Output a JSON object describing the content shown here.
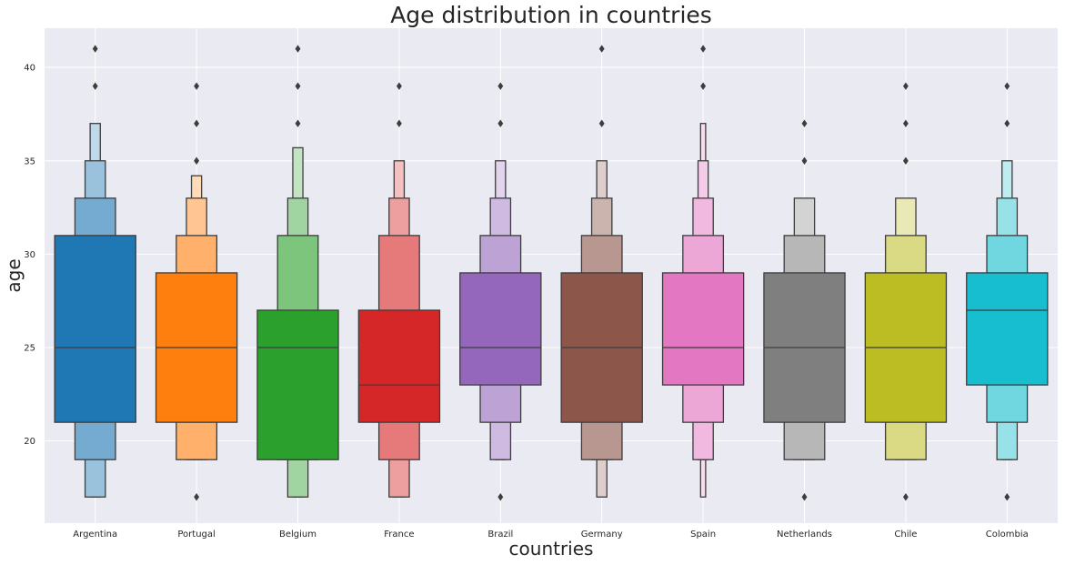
{
  "chart_data": {
    "type": "boxen",
    "title": "Age distribution in countries",
    "xlabel": "countries",
    "ylabel": "age",
    "ylim": [
      15.6,
      42.1
    ],
    "yticks": [
      20,
      25,
      30,
      35,
      40
    ],
    "grid": true,
    "background": "#EAEAF2",
    "categories": [
      "Argentina",
      "Portugal",
      "Belgium",
      "France",
      "Brazil",
      "Germany",
      "Spain",
      "Netherlands",
      "Chile",
      "Colombia"
    ],
    "colors": [
      "#1F77B4",
      "#FF7F0E",
      "#2CA02C",
      "#D62728",
      "#9467BD",
      "#8C564B",
      "#E377C2",
      "#7F7F7F",
      "#BCBD22",
      "#17BECF"
    ],
    "series": [
      {
        "category": "Argentina",
        "median": 25,
        "letter_values": [
          [
            21,
            31
          ],
          [
            19,
            33
          ],
          [
            17,
            35
          ],
          [
            17,
            37
          ]
        ],
        "outliers": [
          39,
          41
        ]
      },
      {
        "category": "Portugal",
        "median": 25,
        "letter_values": [
          [
            21,
            29
          ],
          [
            19,
            31
          ],
          [
            19,
            33
          ],
          [
            19,
            34.2
          ]
        ],
        "outliers": [
          17,
          35,
          37,
          39
        ]
      },
      {
        "category": "Belgium",
        "median": 25,
        "letter_values": [
          [
            19,
            27
          ],
          [
            19,
            31
          ],
          [
            17,
            33
          ],
          [
            17,
            35.7
          ]
        ],
        "outliers": [
          37,
          39,
          41
        ]
      },
      {
        "category": "France",
        "median": 23,
        "letter_values": [
          [
            21,
            27
          ],
          [
            19,
            31
          ],
          [
            17,
            33
          ],
          [
            17,
            35
          ]
        ],
        "outliers": [
          37,
          39
        ]
      },
      {
        "category": "Brazil",
        "median": 25,
        "letter_values": [
          [
            23,
            29
          ],
          [
            21,
            31
          ],
          [
            19,
            33
          ],
          [
            19,
            35
          ]
        ],
        "outliers": [
          17,
          37,
          39
        ]
      },
      {
        "category": "Germany",
        "median": 25,
        "letter_values": [
          [
            21,
            29
          ],
          [
            19,
            31
          ],
          [
            19,
            33
          ],
          [
            17,
            35
          ]
        ],
        "outliers": [
          37,
          41
        ]
      },
      {
        "category": "Spain",
        "median": 25,
        "letter_values": [
          [
            23,
            29
          ],
          [
            21,
            31
          ],
          [
            19,
            33
          ],
          [
            19,
            35
          ],
          [
            17,
            37
          ]
        ],
        "outliers": [
          39,
          41
        ]
      },
      {
        "category": "Netherlands",
        "median": 25,
        "letter_values": [
          [
            21,
            29
          ],
          [
            19,
            31
          ],
          [
            19,
            33
          ]
        ],
        "outliers": [
          17,
          35,
          37
        ]
      },
      {
        "category": "Chile",
        "median": 25,
        "letter_values": [
          [
            21,
            29
          ],
          [
            19,
            31
          ],
          [
            19,
            33
          ]
        ],
        "outliers": [
          17,
          35,
          37,
          39
        ]
      },
      {
        "category": "Colombia",
        "median": 27,
        "letter_values": [
          [
            23,
            29
          ],
          [
            21,
            31
          ],
          [
            19,
            33
          ],
          [
            19,
            35
          ]
        ],
        "outliers": [
          17,
          37,
          39
        ]
      }
    ]
  }
}
